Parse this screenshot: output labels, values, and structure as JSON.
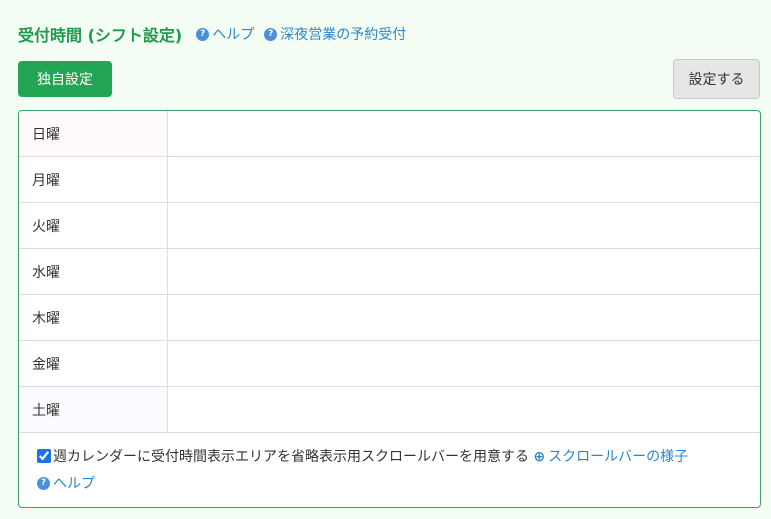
{
  "header": {
    "title": "受付時間 (シフト設定)",
    "help_link": "ヘルプ",
    "late_night_link": "深夜営業の予約受付"
  },
  "buttons": {
    "custom": "独自設定",
    "apply": "設定する"
  },
  "days": [
    {
      "label": "日曜",
      "bg": "#fffafa"
    },
    {
      "label": "月曜",
      "bg": "#ffffff"
    },
    {
      "label": "火曜",
      "bg": "#ffffff"
    },
    {
      "label": "水曜",
      "bg": "#ffffff"
    },
    {
      "label": "木曜",
      "bg": "#ffffff"
    },
    {
      "label": "金曜",
      "bg": "#ffffff"
    },
    {
      "label": "土曜",
      "bg": "#f9fbff"
    }
  ],
  "footer": {
    "checked": true,
    "checkbox_label": "週カレンダーに受付時間表示エリアを省略表示用スクロールバーを用意する",
    "scrollbar_link": "スクロールバーの様子",
    "help_link": "ヘルプ"
  },
  "colors": {
    "accent": "#22a653",
    "link": "#2a86c8"
  }
}
